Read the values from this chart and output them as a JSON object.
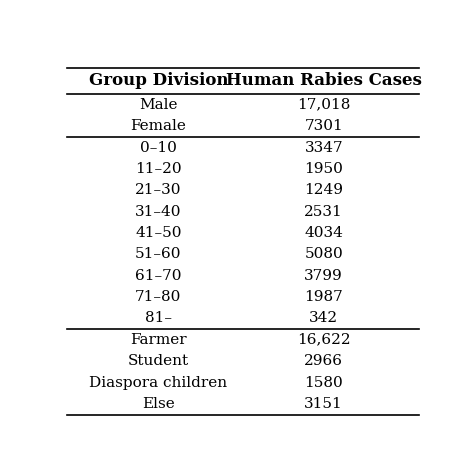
{
  "col1_header": "Group Division",
  "col2_header": "Human Rabies Cases",
  "rows": [
    [
      "Male",
      "17,018"
    ],
    [
      "Female",
      "7301"
    ],
    [
      "0–10",
      "3347"
    ],
    [
      "11–20",
      "1950"
    ],
    [
      "21–30",
      "1249"
    ],
    [
      "31–40",
      "2531"
    ],
    [
      "41–50",
      "4034"
    ],
    [
      "51–60",
      "5080"
    ],
    [
      "61–70",
      "3799"
    ],
    [
      "71–80",
      "1987"
    ],
    [
      "81–",
      "342"
    ],
    [
      "Farmer",
      "16,622"
    ],
    [
      "Student",
      "2966"
    ],
    [
      "Diaspora children",
      "1580"
    ],
    [
      "Else",
      "3151"
    ]
  ],
  "dividers_after": [
    1,
    10
  ],
  "bg_color": "#ffffff",
  "text_color": "#000000",
  "header_fontsize": 12,
  "body_fontsize": 11,
  "font_family": "serif"
}
